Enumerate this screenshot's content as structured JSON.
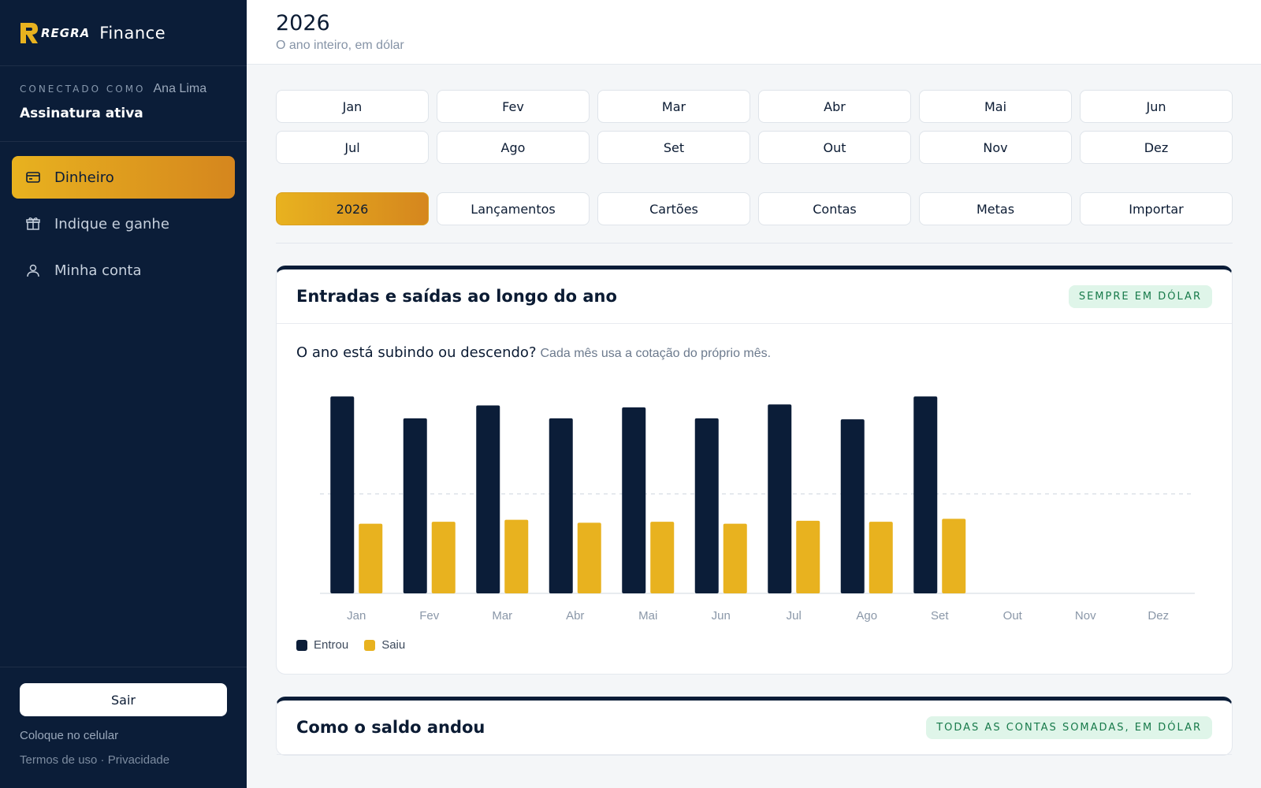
{
  "brand": {
    "logo_text": "REGRA",
    "app_name": "Finance"
  },
  "session": {
    "connected_label": "CONECTADO COMO",
    "user_name": "Ana Lima",
    "subscription": "Assinatura ativa"
  },
  "nav": {
    "items": [
      {
        "label": "Dinheiro",
        "icon": "card-icon",
        "active": true
      },
      {
        "label": "Indique e ganhe",
        "icon": "gift-icon",
        "active": false
      },
      {
        "label": "Minha conta",
        "icon": "user-icon",
        "active": false
      }
    ]
  },
  "sidebar_bottom": {
    "logout_label": "Sair",
    "install_label": "Coloque no celular",
    "terms_label": "Termos de uso",
    "separator": " · ",
    "privacy_label": "Privacidade"
  },
  "header": {
    "title": "2026",
    "subtitle": "O ano inteiro, em dólar"
  },
  "months": [
    "Jan",
    "Fev",
    "Mar",
    "Abr",
    "Mai",
    "Jun",
    "Jul",
    "Ago",
    "Set",
    "Out",
    "Nov",
    "Dez"
  ],
  "tabs": [
    {
      "label": "2026",
      "active": true
    },
    {
      "label": "Lançamentos",
      "active": false
    },
    {
      "label": "Cartões",
      "active": false
    },
    {
      "label": "Contas",
      "active": false
    },
    {
      "label": "Metas",
      "active": false
    },
    {
      "label": "Importar",
      "active": false
    }
  ],
  "card1": {
    "title": "Entradas e saídas ao longo do ano",
    "badge": "SEMPRE EM DÓLAR",
    "question": "O ano está subindo ou descendo?",
    "question_note": "Cada mês usa a cotação do próprio mês."
  },
  "card2": {
    "title": "Como o saldo andou",
    "badge": "TODAS AS CONTAS SOMADAS, EM DÓLAR"
  },
  "colors": {
    "income": "#0b1d38",
    "expense": "#e8b21f",
    "accent": "#e0a21f"
  },
  "chart_data": {
    "type": "bar",
    "categories": [
      "Jan",
      "Fev",
      "Mar",
      "Abr",
      "Mai",
      "Jun",
      "Jul",
      "Ago",
      "Set",
      "Out",
      "Nov",
      "Dez"
    ],
    "series": [
      {
        "name": "Entrou",
        "values": [
          198,
          176,
          189,
          176,
          187,
          176,
          190,
          175,
          198,
          null,
          null,
          null
        ]
      },
      {
        "name": "Saiu",
        "values": [
          70,
          72,
          74,
          71,
          72,
          70,
          73,
          72,
          75,
          null,
          null,
          null
        ]
      }
    ],
    "ylim": [
      0,
      210
    ],
    "reference_line": 100,
    "legend": "bottom-left"
  }
}
